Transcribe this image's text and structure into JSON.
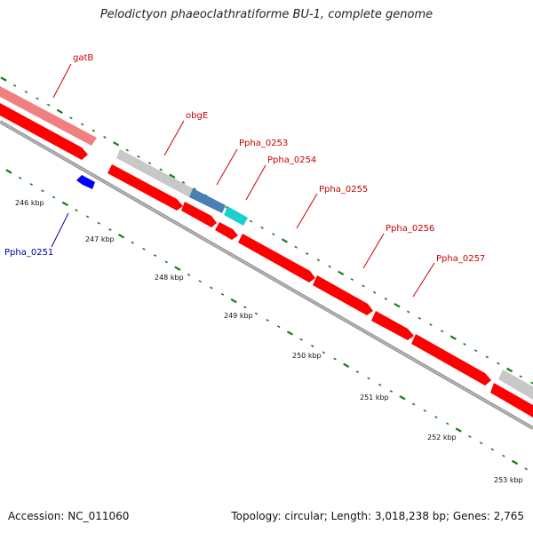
{
  "title": "Pelodictyon phaeoclathratiforme BU-1, complete genome",
  "footer": {
    "accession": "Accession: NC_011060",
    "summary": "Topology: circular; Length: 3,018,238 bp; Genes: 2,765"
  },
  "colors": {
    "forward_gene": "#ff0000",
    "forward_gene_faded": "#f08080",
    "reverse_gene": "#0000ff",
    "rna": "#c8c8c8",
    "gene_blue": "#4a7fb5",
    "gene_cyan": "#1ecece",
    "backbone": "#808080",
    "ticks": "#1a7a1a",
    "label_red": "#cc0000",
    "label_blue": "#0000aa"
  },
  "kbp_labels": [
    "246 kbp",
    "247 kbp",
    "248 kbp",
    "249 kbp",
    "250 kbp",
    "251 kbp",
    "252 kbp",
    "253 kbp"
  ],
  "gene_labels": [
    {
      "name": "gatB",
      "strand": "forward"
    },
    {
      "name": "obgE",
      "strand": "forward"
    },
    {
      "name": "Ppha_0253",
      "strand": "forward"
    },
    {
      "name": "Ppha_0254",
      "strand": "forward"
    },
    {
      "name": "Ppha_0255",
      "strand": "forward"
    },
    {
      "name": "Ppha_0256",
      "strand": "forward"
    },
    {
      "name": "Ppha_0257",
      "strand": "forward"
    },
    {
      "name": "Ppha_0251",
      "strand": "reverse"
    }
  ]
}
